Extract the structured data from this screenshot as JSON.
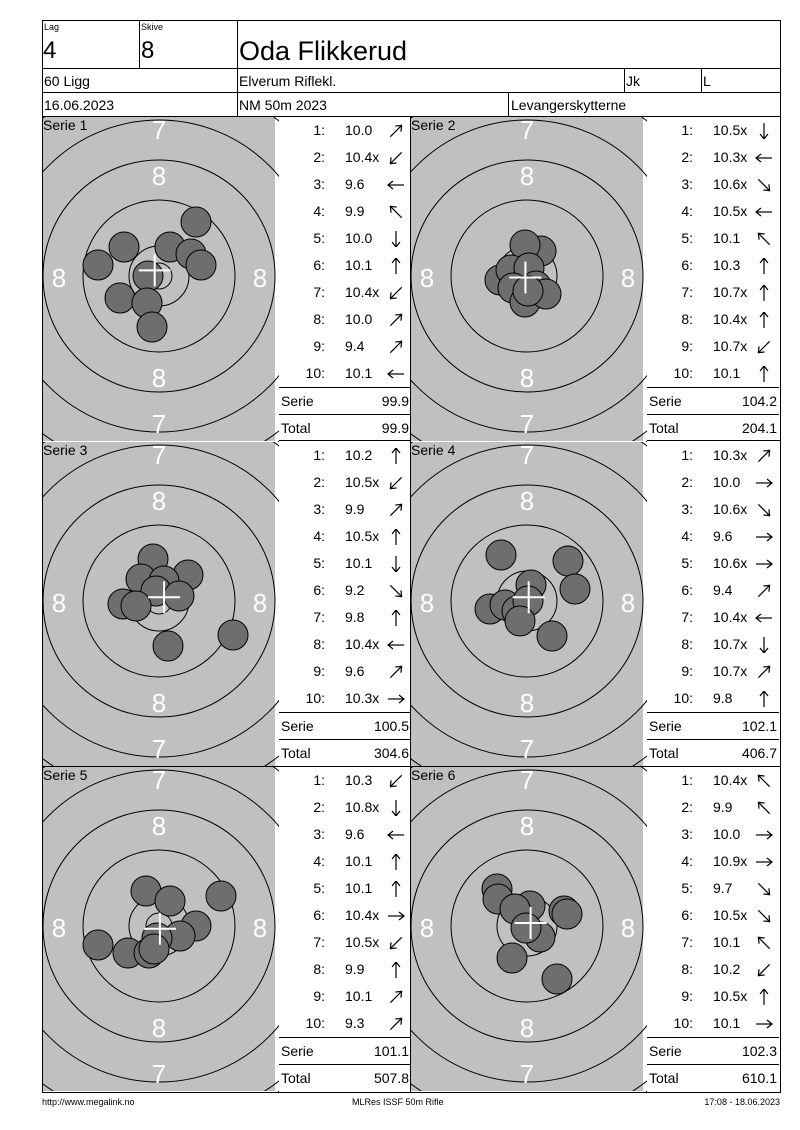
{
  "header": {
    "lag_label": "Lag",
    "lag_value": "4",
    "skive_label": "Skive",
    "skive_value": "8",
    "name": "Oda Flikkerud",
    "klasse": "60 Ligg",
    "club": "Elverum Riflekl.",
    "jk": "Jk",
    "l": "L",
    "date": "16.06.2023",
    "event": "NM 50m 2023",
    "organizer": "Levangerskytterne"
  },
  "target_ring_labels": {
    "seven": "7",
    "eight": "8"
  },
  "series": [
    {
      "label": "Serie 1",
      "shots": [
        {
          "n": "1:",
          "v": "10.0",
          "dir": "ne"
        },
        {
          "n": "2:",
          "v": "10.4x",
          "dir": "sw"
        },
        {
          "n": "3:",
          "v": "9.6",
          "dir": "w"
        },
        {
          "n": "4:",
          "v": "9.9",
          "dir": "nw"
        },
        {
          "n": "5:",
          "v": "10.0",
          "dir": "s"
        },
        {
          "n": "6:",
          "v": "10.1",
          "dir": "n"
        },
        {
          "n": "7:",
          "v": "10.4x",
          "dir": "sw"
        },
        {
          "n": "8:",
          "v": "10.0",
          "dir": "ne"
        },
        {
          "n": "9:",
          "v": "9.4",
          "dir": "ne"
        },
        {
          "n": "10:",
          "v": "10.1",
          "dir": "w"
        }
      ],
      "serie_label": "Serie",
      "serie_sum": "99.9",
      "total_label": "Total",
      "total_sum": "99.9",
      "impacts": [
        [
          37,
          -54
        ],
        [
          -35,
          -29
        ],
        [
          11,
          -29
        ],
        [
          32,
          -22
        ],
        [
          -61,
          -11
        ],
        [
          42,
          -11
        ],
        [
          -11,
          0
        ],
        [
          -39,
          22
        ],
        [
          -12,
          27
        ],
        [
          -7,
          51
        ]
      ]
    },
    {
      "label": "Serie 2",
      "shots": [
        {
          "n": "1:",
          "v": "10.5x",
          "dir": "s"
        },
        {
          "n": "2:",
          "v": "10.3x",
          "dir": "w"
        },
        {
          "n": "3:",
          "v": "10.6x",
          "dir": "se"
        },
        {
          "n": "4:",
          "v": "10.5x",
          "dir": "w"
        },
        {
          "n": "5:",
          "v": "10.1",
          "dir": "nw"
        },
        {
          "n": "6:",
          "v": "10.3",
          "dir": "n"
        },
        {
          "n": "7:",
          "v": "10.7x",
          "dir": "n"
        },
        {
          "n": "8:",
          "v": "10.4x",
          "dir": "n"
        },
        {
          "n": "9:",
          "v": "10.7x",
          "dir": "sw"
        },
        {
          "n": "10:",
          "v": "10.1",
          "dir": "n"
        }
      ],
      "serie_label": "Serie",
      "serie_sum": "104.2",
      "total_label": "Total",
      "total_sum": "204.1",
      "impacts": [
        [
          14,
          -25
        ],
        [
          -2,
          -31
        ],
        [
          -27,
          4
        ],
        [
          -16,
          -6
        ],
        [
          2,
          -8
        ],
        [
          -14,
          12
        ],
        [
          9,
          10
        ],
        [
          -2,
          26
        ],
        [
          19,
          18
        ],
        [
          1,
          15
        ]
      ]
    },
    {
      "label": "Serie 3",
      "shots": [
        {
          "n": "1:",
          "v": "10.2",
          "dir": "n"
        },
        {
          "n": "2:",
          "v": "10.5x",
          "dir": "sw"
        },
        {
          "n": "3:",
          "v": "9.9",
          "dir": "ne"
        },
        {
          "n": "4:",
          "v": "10.5x",
          "dir": "n"
        },
        {
          "n": "5:",
          "v": "10.1",
          "dir": "s"
        },
        {
          "n": "6:",
          "v": "9.2",
          "dir": "se"
        },
        {
          "n": "7:",
          "v": "9.8",
          "dir": "n"
        },
        {
          "n": "8:",
          "v": "10.4x",
          "dir": "w"
        },
        {
          "n": "9:",
          "v": "9.6",
          "dir": "ne"
        },
        {
          "n": "10:",
          "v": "10.3x",
          "dir": "e"
        }
      ],
      "serie_label": "Serie",
      "serie_sum": "100.5",
      "total_label": "Total",
      "total_sum": "304.6",
      "impacts": [
        [
          -6,
          -42
        ],
        [
          29,
          -26
        ],
        [
          -18,
          -22
        ],
        [
          5,
          -20
        ],
        [
          -3,
          -10
        ],
        [
          -36,
          3
        ],
        [
          -23,
          5
        ],
        [
          20,
          -5
        ],
        [
          74,
          34
        ],
        [
          9,
          45
        ]
      ]
    },
    {
      "label": "Serie 4",
      "shots": [
        {
          "n": "1:",
          "v": "10.3x",
          "dir": "ne"
        },
        {
          "n": "2:",
          "v": "10.0",
          "dir": "e"
        },
        {
          "n": "3:",
          "v": "10.6x",
          "dir": "se"
        },
        {
          "n": "4:",
          "v": "9.6",
          "dir": "e"
        },
        {
          "n": "5:",
          "v": "10.6x",
          "dir": "e"
        },
        {
          "n": "6:",
          "v": "9.4",
          "dir": "ne"
        },
        {
          "n": "7:",
          "v": "10.4x",
          "dir": "w"
        },
        {
          "n": "8:",
          "v": "10.7x",
          "dir": "s"
        },
        {
          "n": "9:",
          "v": "10.7x",
          "dir": "ne"
        },
        {
          "n": "10:",
          "v": "9.8",
          "dir": "n"
        }
      ],
      "serie_label": "Serie",
      "serie_sum": "102.1",
      "total_label": "Total",
      "total_sum": "406.7",
      "impacts": [
        [
          -26,
          -46
        ],
        [
          41,
          -40
        ],
        [
          48,
          -12
        ],
        [
          4,
          -16
        ],
        [
          -37,
          8
        ],
        [
          -22,
          4
        ],
        [
          -10,
          10
        ],
        [
          1,
          0
        ],
        [
          -7,
          20
        ],
        [
          25,
          35
        ]
      ]
    },
    {
      "label": "Serie 5",
      "shots": [
        {
          "n": "1:",
          "v": "10.3",
          "dir": "sw"
        },
        {
          "n": "2:",
          "v": "10.8x",
          "dir": "s"
        },
        {
          "n": "3:",
          "v": "9.6",
          "dir": "w"
        },
        {
          "n": "4:",
          "v": "10.1",
          "dir": "n"
        },
        {
          "n": "5:",
          "v": "10.1",
          "dir": "n"
        },
        {
          "n": "6:",
          "v": "10.4x",
          "dir": "e"
        },
        {
          "n": "7:",
          "v": "10.5x",
          "dir": "sw"
        },
        {
          "n": "8:",
          "v": "9.9",
          "dir": "n"
        },
        {
          "n": "9:",
          "v": "10.1",
          "dir": "ne"
        },
        {
          "n": "10:",
          "v": "9.3",
          "dir": "ne"
        }
      ],
      "serie_label": "Serie",
      "serie_sum": "101.1",
      "total_label": "Total",
      "total_sum": "507.8",
      "impacts": [
        [
          -13,
          -35
        ],
        [
          11,
          -25
        ],
        [
          62,
          -30
        ],
        [
          37,
          0
        ],
        [
          21,
          10
        ],
        [
          -2,
          12
        ],
        [
          -61,
          19
        ],
        [
          -31,
          27
        ],
        [
          -10,
          27
        ],
        [
          -5,
          23
        ]
      ]
    },
    {
      "label": "Serie 6",
      "shots": [
        {
          "n": "1:",
          "v": "10.4x",
          "dir": "nw"
        },
        {
          "n": "2:",
          "v": "9.9",
          "dir": "nw"
        },
        {
          "n": "3:",
          "v": "10.0",
          "dir": "e"
        },
        {
          "n": "4:",
          "v": "10.9x",
          "dir": "e"
        },
        {
          "n": "5:",
          "v": "9.7",
          "dir": "se"
        },
        {
          "n": "6:",
          "v": "10.5x",
          "dir": "se"
        },
        {
          "n": "7:",
          "v": "10.1",
          "dir": "nw"
        },
        {
          "n": "8:",
          "v": "10.2",
          "dir": "sw"
        },
        {
          "n": "9:",
          "v": "10.5x",
          "dir": "n"
        },
        {
          "n": "10:",
          "v": "10.1",
          "dir": "e"
        }
      ],
      "serie_label": "Serie",
      "serie_sum": "102.3",
      "total_label": "Total",
      "total_sum": "610.1",
      "impacts": [
        [
          -30,
          -37
        ],
        [
          -29,
          -27
        ],
        [
          3,
          -20
        ],
        [
          -12,
          -17
        ],
        [
          37,
          -15
        ],
        [
          40,
          -12
        ],
        [
          13,
          11
        ],
        [
          -1,
          2
        ],
        [
          -15,
          32
        ],
        [
          30,
          53
        ]
      ]
    }
  ],
  "footer": {
    "left": "http://www.megalink.no",
    "center": "MLRes ISSF 50m Rifle",
    "right": "17:08 - 18.06.2023"
  }
}
